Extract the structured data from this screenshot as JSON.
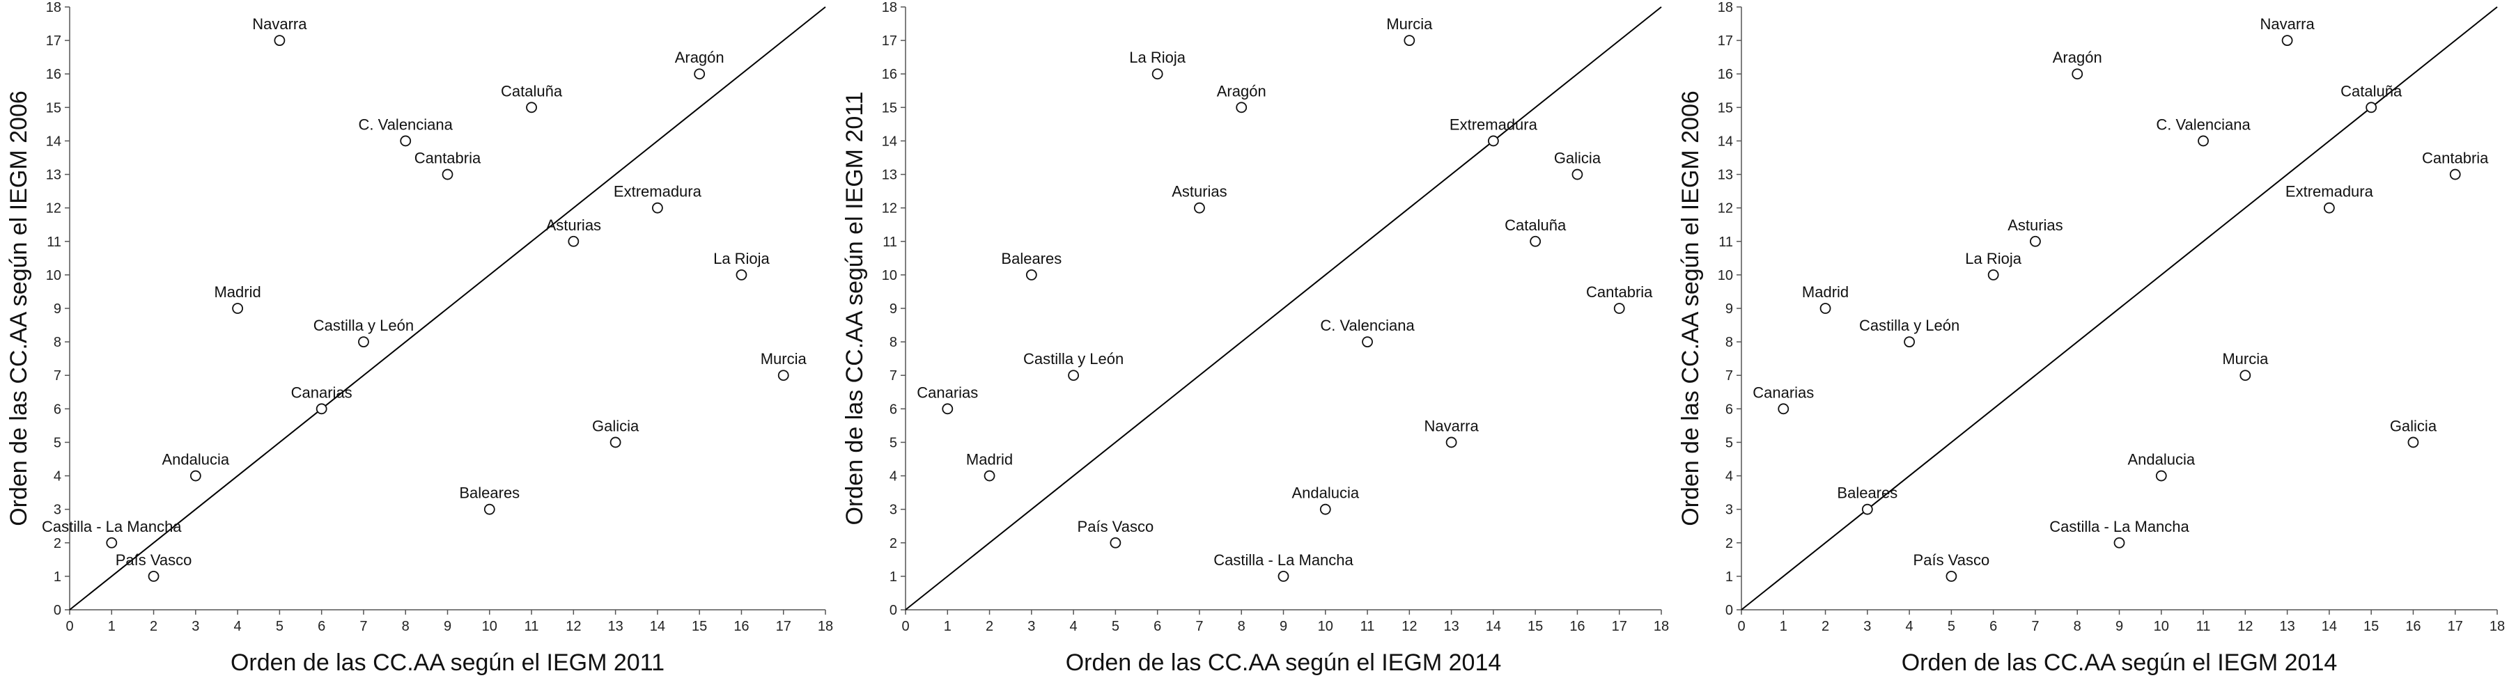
{
  "chart_data": [
    {
      "type": "scatter",
      "xlabel": "Orden de las CC.AA según el IEGM 2011",
      "ylabel": "Orden de las CC.AA según el IEGM 2006",
      "xlim": [
        0,
        18
      ],
      "ylim": [
        0,
        18
      ],
      "xticks": [
        0,
        1,
        2,
        3,
        4,
        5,
        6,
        7,
        8,
        9,
        10,
        11,
        12,
        13,
        14,
        15,
        16,
        17,
        18
      ],
      "yticks": [
        0,
        1,
        2,
        3,
        4,
        5,
        6,
        7,
        8,
        9,
        10,
        11,
        12,
        13,
        14,
        15,
        16,
        17,
        18
      ],
      "reference_line": "diagonal y = x",
      "points": [
        {
          "label": "Navarra",
          "x": 5,
          "y": 17
        },
        {
          "label": "Aragón",
          "x": 15,
          "y": 16
        },
        {
          "label": "Cataluña",
          "x": 11,
          "y": 15
        },
        {
          "label": "C. Valenciana",
          "x": 8,
          "y": 14
        },
        {
          "label": "Cantabria",
          "x": 9,
          "y": 13
        },
        {
          "label": "Extremadura",
          "x": 14,
          "y": 12
        },
        {
          "label": "Asturias",
          "x": 12,
          "y": 11
        },
        {
          "label": "La Rioja",
          "x": 16,
          "y": 10
        },
        {
          "label": "Madrid",
          "x": 4,
          "y": 9
        },
        {
          "label": "Castilla y León",
          "x": 7,
          "y": 8
        },
        {
          "label": "Murcia",
          "x": 17,
          "y": 7
        },
        {
          "label": "Canarias",
          "x": 6,
          "y": 6
        },
        {
          "label": "Galicia",
          "x": 13,
          "y": 5
        },
        {
          "label": "Andalucia",
          "x": 3,
          "y": 4
        },
        {
          "label": "Baleares",
          "x": 10,
          "y": 3
        },
        {
          "label": "Castilla - La Mancha",
          "x": 1,
          "y": 2
        },
        {
          "label": "País Vasco",
          "x": 2,
          "y": 1
        }
      ]
    },
    {
      "type": "scatter",
      "xlabel": "Orden de las CC.AA según el IEGM 2014",
      "ylabel": "Orden de las CC.AA según el IEGM 2011",
      "xlim": [
        0,
        18
      ],
      "ylim": [
        0,
        18
      ],
      "xticks": [
        0,
        1,
        2,
        3,
        4,
        5,
        6,
        7,
        8,
        9,
        10,
        11,
        12,
        13,
        14,
        15,
        16,
        17,
        18
      ],
      "yticks": [
        0,
        1,
        2,
        3,
        4,
        5,
        6,
        7,
        8,
        9,
        10,
        11,
        12,
        13,
        14,
        15,
        16,
        17,
        18
      ],
      "reference_line": "diagonal y = x",
      "points": [
        {
          "label": "Murcia",
          "x": 12,
          "y": 17
        },
        {
          "label": "La Rioja",
          "x": 6,
          "y": 16
        },
        {
          "label": "Aragón",
          "x": 8,
          "y": 15
        },
        {
          "label": "Extremadura",
          "x": 14,
          "y": 14
        },
        {
          "label": "Galicia",
          "x": 16,
          "y": 13
        },
        {
          "label": "Asturias",
          "x": 7,
          "y": 12
        },
        {
          "label": "Cataluña",
          "x": 15,
          "y": 11
        },
        {
          "label": "Baleares",
          "x": 3,
          "y": 10
        },
        {
          "label": "Cantabria",
          "x": 17,
          "y": 9
        },
        {
          "label": "C. Valenciana",
          "x": 11,
          "y": 8
        },
        {
          "label": "Castilla y León",
          "x": 4,
          "y": 7
        },
        {
          "label": "Canarias",
          "x": 1,
          "y": 6
        },
        {
          "label": "Navarra",
          "x": 13,
          "y": 5
        },
        {
          "label": "Madrid",
          "x": 2,
          "y": 4
        },
        {
          "label": "Andalucia",
          "x": 10,
          "y": 3
        },
        {
          "label": "País Vasco",
          "x": 5,
          "y": 2
        },
        {
          "label": "Castilla - La Mancha",
          "x": 9,
          "y": 1
        }
      ]
    },
    {
      "type": "scatter",
      "xlabel": "Orden de las CC.AA según el IEGM 2014",
      "ylabel": "Orden de las CC.AA según el IEGM 2006",
      "xlim": [
        0,
        18
      ],
      "ylim": [
        0,
        18
      ],
      "xticks": [
        0,
        1,
        2,
        3,
        4,
        5,
        6,
        7,
        8,
        9,
        10,
        11,
        12,
        13,
        14,
        15,
        16,
        17,
        18
      ],
      "yticks": [
        0,
        1,
        2,
        3,
        4,
        5,
        6,
        7,
        8,
        9,
        10,
        11,
        12,
        13,
        14,
        15,
        16,
        17,
        18
      ],
      "reference_line": "diagonal y = x",
      "points": [
        {
          "label": "Navarra",
          "x": 13,
          "y": 17
        },
        {
          "label": "Aragón",
          "x": 8,
          "y": 16
        },
        {
          "label": "Cataluña",
          "x": 15,
          "y": 15
        },
        {
          "label": "C. Valenciana",
          "x": 11,
          "y": 14
        },
        {
          "label": "Cantabria",
          "x": 17,
          "y": 13
        },
        {
          "label": "Extremadura",
          "x": 14,
          "y": 12
        },
        {
          "label": "Asturias",
          "x": 7,
          "y": 11
        },
        {
          "label": "La Rioja",
          "x": 6,
          "y": 10
        },
        {
          "label": "Madrid",
          "x": 2,
          "y": 9
        },
        {
          "label": "Castilla y León",
          "x": 4,
          "y": 8
        },
        {
          "label": "Murcia",
          "x": 12,
          "y": 7
        },
        {
          "label": "Canarias",
          "x": 1,
          "y": 6
        },
        {
          "label": "Galicia",
          "x": 16,
          "y": 5
        },
        {
          "label": "Andalucia",
          "x": 10,
          "y": 4
        },
        {
          "label": "Baleares",
          "x": 3,
          "y": 3
        },
        {
          "label": "Castilla - La Mancha",
          "x": 9,
          "y": 2
        },
        {
          "label": "País Vasco",
          "x": 5,
          "y": 1
        }
      ]
    }
  ]
}
